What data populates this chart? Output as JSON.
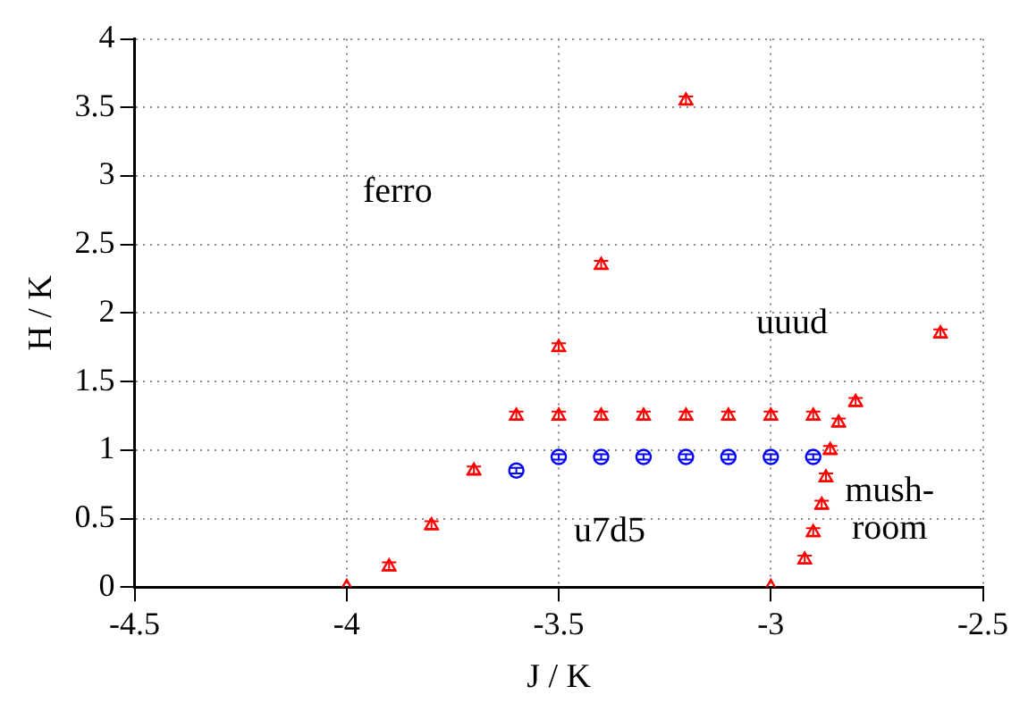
{
  "chart_data": {
    "type": "scatter",
    "xlabel": "J / K",
    "ylabel": "H / K",
    "xlim": [
      -4.5,
      -2.5
    ],
    "xticks": [
      -4.5,
      -4,
      -3.5,
      -3,
      -2.5
    ],
    "ylim": [
      0,
      4
    ],
    "yticks": [
      0,
      0.5,
      1,
      1.5,
      2,
      2.5,
      3,
      3.5,
      4
    ],
    "grid": true,
    "legend": false,
    "series": [
      {
        "color": "#ff0000",
        "marker": "triangle",
        "x": [
          -4,
          -3.9,
          -3.8,
          -3.7,
          -3.6,
          -3.5,
          -3.5,
          -3.4,
          -3.4,
          -3.3,
          -3.2,
          -3.2,
          -3.1,
          -3.0,
          -3.0,
          -2.9,
          -2.92,
          -2.9,
          -2.88,
          -2.87,
          -2.86,
          -2.84,
          -2.8,
          -2.6
        ],
        "values": [
          0,
          0.15,
          0.45,
          0.85,
          1.25,
          1.25,
          1.75,
          1.25,
          2.35,
          1.25,
          1.25,
          3.55,
          1.25,
          1.25,
          0,
          1.25,
          0.2,
          0.4,
          0.6,
          0.8,
          1.0,
          1.2,
          1.35,
          1.85
        ],
        "errors": [
          null,
          0.03,
          0.03,
          0.03,
          0.03,
          0.03,
          0.03,
          0.03,
          0.03,
          0.03,
          0.03,
          0.03,
          0.03,
          0.03,
          null,
          0.03,
          0.03,
          0.03,
          0.03,
          0.03,
          0.03,
          0.03,
          0.03,
          0.03
        ]
      },
      {
        "color": "#0000ff",
        "marker": "circle",
        "x": [
          -3.6,
          -3.5,
          -3.4,
          -3.3,
          -3.2,
          -3.1,
          -3.0,
          -2.9
        ],
        "values": [
          0.85,
          0.95,
          0.95,
          0.95,
          0.95,
          0.95,
          0.95,
          0.95
        ],
        "errors": [
          0.02,
          0.02,
          0.02,
          0.02,
          0.02,
          0.02,
          0.02,
          0.02
        ]
      }
    ],
    "annotations": [
      "ferro",
      "uuud",
      "u7d5",
      "mush-\nroom"
    ]
  }
}
